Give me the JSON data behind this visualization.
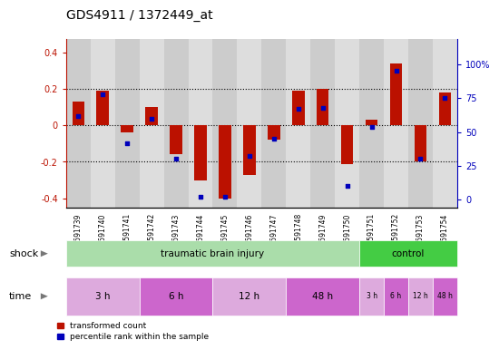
{
  "title": "GDS4911 / 1372449_at",
  "samples": [
    "GSM591739",
    "GSM591740",
    "GSM591741",
    "GSM591742",
    "GSM591743",
    "GSM591744",
    "GSM591745",
    "GSM591746",
    "GSM591747",
    "GSM591748",
    "GSM591749",
    "GSM591750",
    "GSM591751",
    "GSM591752",
    "GSM591753",
    "GSM591754"
  ],
  "red_values": [
    0.13,
    0.19,
    -0.04,
    0.1,
    -0.16,
    -0.3,
    -0.4,
    -0.27,
    -0.08,
    0.19,
    0.2,
    -0.21,
    0.03,
    0.34,
    -0.2,
    0.18
  ],
  "blue_values": [
    62,
    78,
    42,
    60,
    30,
    2,
    2,
    32,
    45,
    67,
    68,
    10,
    54,
    95,
    30,
    75
  ],
  "ylim_left": [
    -0.45,
    0.475
  ],
  "ylim_right": [
    -5.625,
    118.75
  ],
  "yticks_left": [
    -0.4,
    -0.2,
    0.0,
    0.2,
    0.4
  ],
  "yticks_right": [
    0,
    25,
    50,
    75,
    100
  ],
  "ytick_labels_right": [
    "0",
    "25",
    "50",
    "75",
    "100%"
  ],
  "ytick_labels_left": [
    "-0.4",
    "-0.2",
    "0",
    "0.2",
    "0.4"
  ],
  "dotted_lines": [
    -0.2,
    0.0,
    0.2
  ],
  "shock_label": "shock",
  "time_label": "time",
  "shock_tbi_label": "traumatic brain injury",
  "shock_ctrl_label": "control",
  "shock_tbi_color": "#aaddaa",
  "shock_ctrl_color": "#44cc44",
  "time_color_light": "#ddaadd",
  "time_color_dark": "#cc66cc",
  "time_groups": [
    {
      "label": "3 h",
      "start": 0,
      "end": 3,
      "dark": false
    },
    {
      "label": "6 h",
      "start": 3,
      "end": 6,
      "dark": true
    },
    {
      "label": "12 h",
      "start": 6,
      "end": 9,
      "dark": false
    },
    {
      "label": "48 h",
      "start": 9,
      "end": 12,
      "dark": true
    },
    {
      "label": "3 h",
      "start": 12,
      "end": 13,
      "dark": false
    },
    {
      "label": "6 h",
      "start": 13,
      "end": 14,
      "dark": true
    },
    {
      "label": "12 h",
      "start": 14,
      "end": 15,
      "dark": false
    },
    {
      "label": "48 h",
      "start": 15,
      "end": 16,
      "dark": true
    }
  ],
  "tbi_span": [
    0,
    12
  ],
  "ctrl_span": [
    12,
    16
  ],
  "bar_width": 0.5,
  "red_color": "#BB1100",
  "blue_color": "#0000BB",
  "legend_red": "transformed count",
  "legend_blue": "percentile rank within the sample",
  "col_bg_even": "#cccccc",
  "col_bg_odd": "#dddddd",
  "title_fontsize": 10,
  "tick_fontsize": 7,
  "label_fontsize": 8
}
